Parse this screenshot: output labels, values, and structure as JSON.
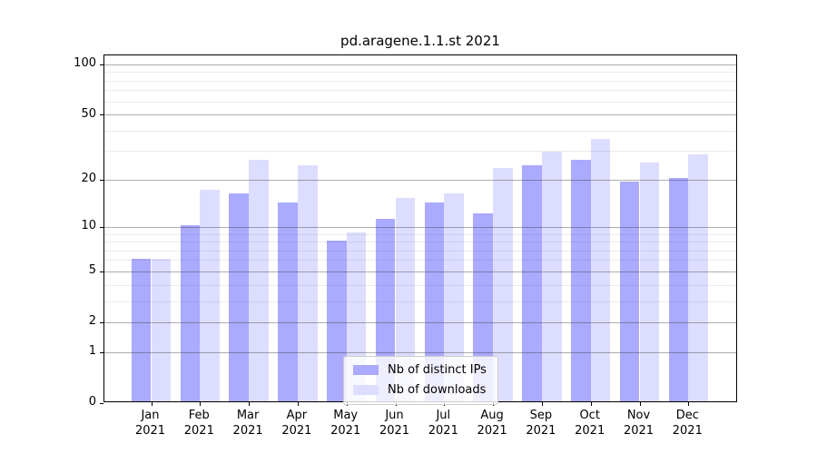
{
  "chart_data": {
    "type": "bar",
    "title": "pd.aragene.1.1.st 2021",
    "year_label": "2021",
    "categories": [
      "Jan",
      "Feb",
      "Mar",
      "Apr",
      "May",
      "Jun",
      "Jul",
      "Aug",
      "Sep",
      "Oct",
      "Nov",
      "Dec"
    ],
    "series": [
      {
        "name": "Nb of distinct IPs",
        "color": "#aaaaff",
        "values": [
          6,
          10,
          16,
          14,
          8,
          11,
          14,
          12,
          24,
          26,
          19,
          20
        ]
      },
      {
        "name": "Nb of downloads",
        "color": "#ddddff",
        "values": [
          6,
          17,
          26,
          24,
          9,
          15,
          16,
          23,
          29,
          35,
          25,
          28
        ]
      }
    ],
    "yscale": "log1p",
    "ylim": [
      0,
      114
    ],
    "y_major_ticks": [
      0,
      1,
      2,
      5,
      10,
      20,
      50,
      100
    ],
    "y_minor_ticks": [
      3,
      4,
      6,
      7,
      8,
      9,
      30,
      40,
      60,
      70,
      80,
      90
    ],
    "grid": "both",
    "legend_position": "lower center",
    "axis_color": "#000000",
    "major_grid_color": "#a7a7a7",
    "minor_grid_color": "#ededed"
  }
}
